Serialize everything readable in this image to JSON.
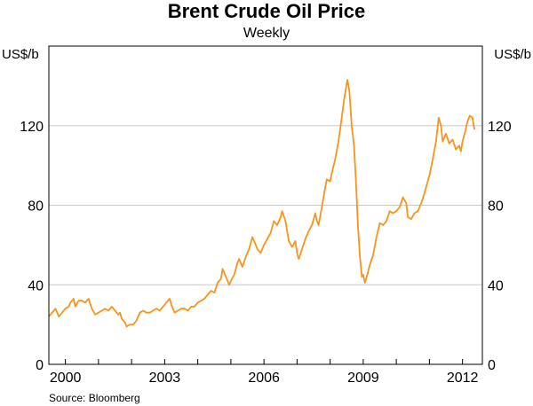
{
  "chart_data": {
    "type": "line",
    "title": "Brent Crude Oil Price",
    "subtitle": "Weekly",
    "y_unit_left": "US$/b",
    "y_unit_right": "US$/b",
    "source": "Source: Bloomberg",
    "xlim": [
      1999.5,
      2012.6
    ],
    "ylim": [
      0,
      160
    ],
    "x_ticks": [
      2000,
      2003,
      2006,
      2009,
      2012
    ],
    "y_ticks": [
      0,
      40,
      80,
      120
    ],
    "grid": "horizontal",
    "line_color": "#f7941d",
    "series": [
      {
        "values": [
          [
            1999.5,
            24
          ],
          [
            1999.6,
            26
          ],
          [
            1999.7,
            28
          ],
          [
            1999.8,
            24
          ],
          [
            1999.9,
            26
          ],
          [
            2000.0,
            28
          ],
          [
            2000.1,
            29
          ],
          [
            2000.15,
            31
          ],
          [
            2000.25,
            33
          ],
          [
            2000.3,
            29
          ],
          [
            2000.4,
            32
          ],
          [
            2000.5,
            32
          ],
          [
            2000.6,
            31
          ],
          [
            2000.7,
            33
          ],
          [
            2000.8,
            28
          ],
          [
            2000.9,
            25
          ],
          [
            2001.0,
            26
          ],
          [
            2001.1,
            27
          ],
          [
            2001.2,
            28
          ],
          [
            2001.3,
            27
          ],
          [
            2001.4,
            29
          ],
          [
            2001.5,
            27
          ],
          [
            2001.6,
            25
          ],
          [
            2001.65,
            26
          ],
          [
            2001.7,
            23
          ],
          [
            2001.8,
            21
          ],
          [
            2001.85,
            19
          ],
          [
            2001.95,
            20
          ],
          [
            2002.05,
            20
          ],
          [
            2002.15,
            22
          ],
          [
            2002.25,
            26
          ],
          [
            2002.35,
            27
          ],
          [
            2002.45,
            26
          ],
          [
            2002.55,
            26
          ],
          [
            2002.65,
            27
          ],
          [
            2002.75,
            28
          ],
          [
            2002.85,
            27
          ],
          [
            2002.95,
            29
          ],
          [
            2003.05,
            31
          ],
          [
            2003.15,
            33
          ],
          [
            2003.2,
            30
          ],
          [
            2003.3,
            26
          ],
          [
            2003.4,
            27
          ],
          [
            2003.5,
            28
          ],
          [
            2003.6,
            28
          ],
          [
            2003.7,
            27
          ],
          [
            2003.8,
            29
          ],
          [
            2003.9,
            29
          ],
          [
            2004.0,
            31
          ],
          [
            2004.1,
            32
          ],
          [
            2004.2,
            33
          ],
          [
            2004.3,
            35
          ],
          [
            2004.4,
            37
          ],
          [
            2004.5,
            36
          ],
          [
            2004.6,
            41
          ],
          [
            2004.7,
            43
          ],
          [
            2004.75,
            48
          ],
          [
            2004.85,
            44
          ],
          [
            2004.95,
            40
          ],
          [
            2005.0,
            42
          ],
          [
            2005.1,
            45
          ],
          [
            2005.2,
            51
          ],
          [
            2005.25,
            53
          ],
          [
            2005.35,
            49
          ],
          [
            2005.45,
            54
          ],
          [
            2005.55,
            58
          ],
          [
            2005.65,
            64
          ],
          [
            2005.7,
            62
          ],
          [
            2005.8,
            58
          ],
          [
            2005.9,
            56
          ],
          [
            2006.0,
            60
          ],
          [
            2006.1,
            63
          ],
          [
            2006.2,
            66
          ],
          [
            2006.3,
            72
          ],
          [
            2006.4,
            70
          ],
          [
            2006.5,
            74
          ],
          [
            2006.55,
            77
          ],
          [
            2006.65,
            72
          ],
          [
            2006.75,
            62
          ],
          [
            2006.85,
            59
          ],
          [
            2006.95,
            62
          ],
          [
            2007.0,
            56
          ],
          [
            2007.05,
            53
          ],
          [
            2007.15,
            58
          ],
          [
            2007.25,
            63
          ],
          [
            2007.35,
            67
          ],
          [
            2007.45,
            70
          ],
          [
            2007.55,
            76
          ],
          [
            2007.6,
            72
          ],
          [
            2007.65,
            70
          ],
          [
            2007.75,
            79
          ],
          [
            2007.85,
            89
          ],
          [
            2007.9,
            93
          ],
          [
            2008.0,
            92
          ],
          [
            2008.05,
            96
          ],
          [
            2008.15,
            103
          ],
          [
            2008.25,
            112
          ],
          [
            2008.35,
            124
          ],
          [
            2008.42,
            133
          ],
          [
            2008.48,
            139
          ],
          [
            2008.52,
            143
          ],
          [
            2008.58,
            138
          ],
          [
            2008.65,
            120
          ],
          [
            2008.72,
            110
          ],
          [
            2008.78,
            92
          ],
          [
            2008.84,
            70
          ],
          [
            2008.9,
            54
          ],
          [
            2008.96,
            44
          ],
          [
            2009.0,
            45
          ],
          [
            2009.05,
            41
          ],
          [
            2009.12,
            45
          ],
          [
            2009.2,
            50
          ],
          [
            2009.3,
            55
          ],
          [
            2009.4,
            64
          ],
          [
            2009.5,
            71
          ],
          [
            2009.6,
            70
          ],
          [
            2009.7,
            72
          ],
          [
            2009.8,
            77
          ],
          [
            2009.9,
            76
          ],
          [
            2010.0,
            77
          ],
          [
            2010.1,
            79
          ],
          [
            2010.2,
            84
          ],
          [
            2010.3,
            81
          ],
          [
            2010.35,
            74
          ],
          [
            2010.45,
            73
          ],
          [
            2010.55,
            76
          ],
          [
            2010.65,
            77
          ],
          [
            2010.75,
            81
          ],
          [
            2010.85,
            86
          ],
          [
            2010.95,
            92
          ],
          [
            2011.0,
            95
          ],
          [
            2011.1,
            103
          ],
          [
            2011.2,
            112
          ],
          [
            2011.28,
            124
          ],
          [
            2011.35,
            120
          ],
          [
            2011.4,
            112
          ],
          [
            2011.5,
            116
          ],
          [
            2011.6,
            111
          ],
          [
            2011.7,
            113
          ],
          [
            2011.8,
            108
          ],
          [
            2011.9,
            110
          ],
          [
            2011.95,
            107
          ],
          [
            2012.0,
            112
          ],
          [
            2012.08,
            117
          ],
          [
            2012.15,
            122
          ],
          [
            2012.22,
            125
          ],
          [
            2012.3,
            124
          ],
          [
            2012.36,
            118
          ]
        ]
      }
    ]
  }
}
